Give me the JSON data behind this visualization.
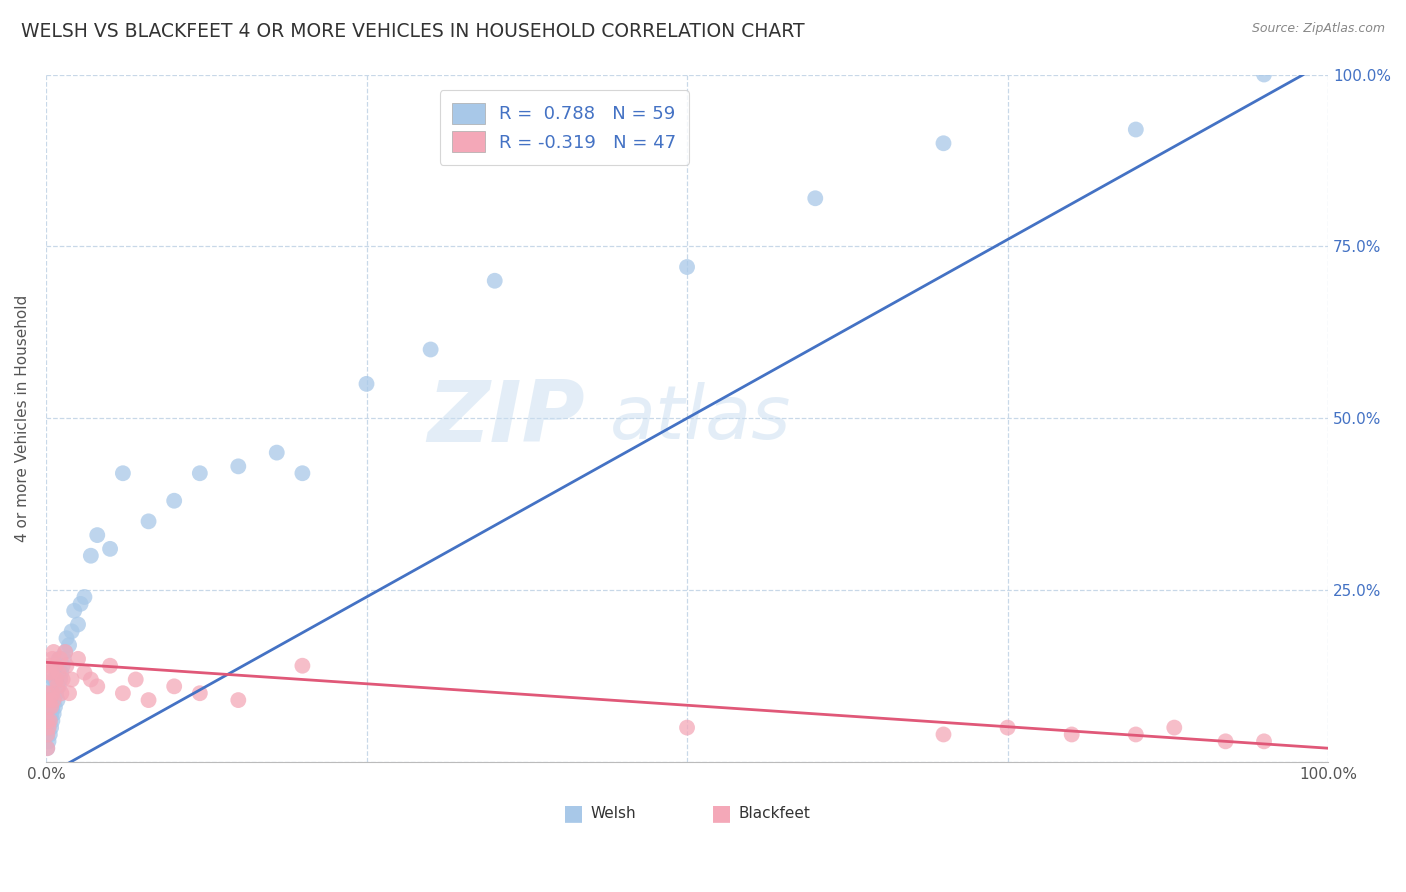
{
  "title": "WELSH VS BLACKFEET 4 OR MORE VEHICLES IN HOUSEHOLD CORRELATION CHART",
  "source": "Source: ZipAtlas.com",
  "ylabel": "4 or more Vehicles in Household",
  "welsh_R": 0.788,
  "welsh_N": 59,
  "blackfeet_R": -0.319,
  "blackfeet_N": 47,
  "welsh_color": "#a8c8e8",
  "blackfeet_color": "#f4a8b8",
  "welsh_line_color": "#4472c4",
  "blackfeet_line_color": "#e05878",
  "watermark_zip": "ZIP",
  "watermark_atlas": "atlas",
  "background_color": "#ffffff",
  "grid_color": "#c8d8e8",
  "title_color": "#333333",
  "right_axis_color": "#4472c4",
  "legend_text_color": "#4472c4",
  "welsh_line_x0": 0.0,
  "welsh_line_y0": -0.02,
  "welsh_line_x1": 1.0,
  "welsh_line_y1": 1.02,
  "blackfeet_line_x0": 0.0,
  "blackfeet_line_y0": 0.145,
  "blackfeet_line_x1": 1.0,
  "blackfeet_line_y1": 0.02,
  "welsh_x": [
    0.001,
    0.001,
    0.001,
    0.001,
    0.002,
    0.002,
    0.002,
    0.002,
    0.003,
    0.003,
    0.003,
    0.003,
    0.004,
    0.004,
    0.004,
    0.005,
    0.005,
    0.005,
    0.006,
    0.006,
    0.006,
    0.007,
    0.007,
    0.008,
    0.008,
    0.009,
    0.009,
    0.01,
    0.01,
    0.011,
    0.012,
    0.013,
    0.014,
    0.015,
    0.016,
    0.018,
    0.02,
    0.022,
    0.025,
    0.027,
    0.03,
    0.035,
    0.04,
    0.05,
    0.06,
    0.08,
    0.1,
    0.12,
    0.15,
    0.18,
    0.2,
    0.25,
    0.3,
    0.35,
    0.5,
    0.6,
    0.7,
    0.85,
    0.95
  ],
  "welsh_y": [
    0.02,
    0.04,
    0.06,
    0.08,
    0.03,
    0.05,
    0.07,
    0.09,
    0.04,
    0.06,
    0.08,
    0.1,
    0.05,
    0.07,
    0.09,
    0.06,
    0.08,
    0.11,
    0.07,
    0.09,
    0.12,
    0.08,
    0.12,
    0.1,
    0.14,
    0.09,
    0.13,
    0.11,
    0.15,
    0.12,
    0.13,
    0.14,
    0.15,
    0.16,
    0.18,
    0.17,
    0.19,
    0.22,
    0.2,
    0.23,
    0.24,
    0.3,
    0.33,
    0.31,
    0.42,
    0.35,
    0.38,
    0.42,
    0.43,
    0.45,
    0.42,
    0.55,
    0.6,
    0.7,
    0.72,
    0.82,
    0.9,
    0.92,
    1.0
  ],
  "blackfeet_x": [
    0.001,
    0.001,
    0.001,
    0.001,
    0.002,
    0.002,
    0.002,
    0.003,
    0.003,
    0.003,
    0.004,
    0.004,
    0.005,
    0.005,
    0.006,
    0.006,
    0.007,
    0.008,
    0.009,
    0.01,
    0.011,
    0.012,
    0.013,
    0.015,
    0.016,
    0.018,
    0.02,
    0.025,
    0.03,
    0.035,
    0.04,
    0.05,
    0.06,
    0.07,
    0.08,
    0.1,
    0.12,
    0.15,
    0.2,
    0.5,
    0.7,
    0.75,
    0.8,
    0.85,
    0.88,
    0.92,
    0.95
  ],
  "blackfeet_y": [
    0.02,
    0.04,
    0.06,
    0.1,
    0.05,
    0.08,
    0.13,
    0.06,
    0.09,
    0.14,
    0.08,
    0.13,
    0.1,
    0.15,
    0.09,
    0.16,
    0.14,
    0.12,
    0.11,
    0.13,
    0.15,
    0.1,
    0.12,
    0.16,
    0.14,
    0.1,
    0.12,
    0.15,
    0.13,
    0.12,
    0.11,
    0.14,
    0.1,
    0.12,
    0.09,
    0.11,
    0.1,
    0.09,
    0.14,
    0.05,
    0.04,
    0.05,
    0.04,
    0.04,
    0.05,
    0.03,
    0.03
  ],
  "ytick_values": [
    0.0,
    0.25,
    0.5,
    0.75,
    1.0
  ],
  "ytick_labels_right": [
    "",
    "25.0%",
    "50.0%",
    "75.0%",
    "100.0%"
  ],
  "xtick_values": [
    0.0,
    0.25,
    0.5,
    0.75,
    1.0
  ],
  "xtick_labels": [
    "0.0%",
    "",
    "",
    "",
    "100.0%"
  ]
}
